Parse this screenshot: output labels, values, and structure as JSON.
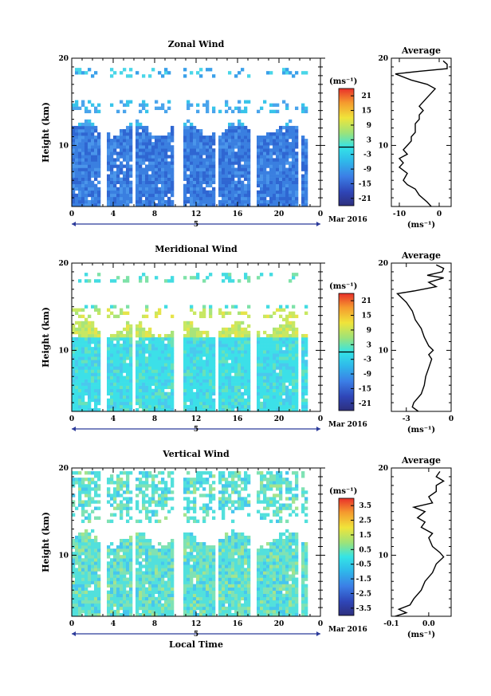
{
  "chart_data": [
    {
      "type": "heatmap",
      "title": "Zonal Wind",
      "ylabel": "Height (km)",
      "xlim": [
        0,
        24
      ],
      "ylim": [
        3,
        20
      ],
      "x_ticks": [
        "0",
        "4",
        "8",
        "12",
        "16",
        "20",
        "0"
      ],
      "y_ticks": [
        "10",
        "20"
      ],
      "date_marker": "5",
      "date_label": "Mar 2016",
      "colorbar": {
        "unit": "(ms⁻¹)",
        "ticks": [
          "21",
          "15",
          "9",
          "3",
          "-3",
          "-9",
          "-15",
          "-21"
        ],
        "range": [
          -24,
          24
        ]
      },
      "gaps": [
        3,
        6,
        10,
        10.5,
        14,
        17.5,
        22
      ],
      "profile": {
        "title": "Average",
        "xlabel": "(ms⁻¹)",
        "x_ticks": [
          "-10",
          "0"
        ],
        "y_ticks": [
          "10",
          "20"
        ],
        "xlim": [
          -12,
          3
        ],
        "points": [
          [
            -2,
            3
          ],
          [
            -3,
            3.5
          ],
          [
            -5,
            4.3
          ],
          [
            -6,
            5
          ],
          [
            -8,
            5.5
          ],
          [
            -9,
            6
          ],
          [
            -8,
            6.8
          ],
          [
            -10,
            7.5
          ],
          [
            -9,
            8
          ],
          [
            -10,
            8.5
          ],
          [
            -8,
            9
          ],
          [
            -9,
            9.5
          ],
          [
            -8,
            10
          ],
          [
            -7,
            10.5
          ],
          [
            -7,
            11
          ],
          [
            -6,
            11.5
          ],
          [
            -6,
            12
          ],
          [
            -6,
            12.5
          ],
          [
            -5,
            13
          ],
          [
            -5,
            13.5
          ],
          [
            -4,
            14
          ],
          [
            -5,
            14.5
          ],
          [
            -4,
            15
          ],
          [
            -3,
            15.5
          ],
          [
            -2,
            16
          ],
          [
            -1,
            16.5
          ],
          [
            -3,
            17
          ],
          [
            -7,
            17.5
          ],
          [
            -11,
            18.2
          ],
          [
            -5,
            18.5
          ],
          [
            2,
            18.8
          ],
          [
            2,
            19.3
          ],
          [
            1,
            19.7
          ]
        ]
      }
    },
    {
      "type": "heatmap",
      "title": "Meridional Wind",
      "ylabel": "Height (km)",
      "xlim": [
        0,
        24
      ],
      "ylim": [
        3,
        20
      ],
      "x_ticks": [
        "0",
        "4",
        "8",
        "12",
        "16",
        "20",
        "0"
      ],
      "y_ticks": [
        "10",
        "20"
      ],
      "date_marker": "5",
      "date_label": "Mar 2016",
      "colorbar": {
        "unit": "(ms⁻¹)",
        "ticks": [
          "21",
          "15",
          "9",
          "3",
          "-3",
          "-9",
          "-15",
          "-21"
        ],
        "range": [
          -24,
          24
        ]
      },
      "gaps": [
        3,
        6,
        10,
        10.5,
        14,
        17.5,
        22
      ],
      "profile": {
        "title": "Average",
        "xlabel": "(ms⁻¹)",
        "x_ticks": [
          "-3",
          "0"
        ],
        "y_ticks": [
          "10",
          "20"
        ],
        "xlim": [
          -4,
          0
        ],
        "points": [
          [
            -2.2,
            3
          ],
          [
            -2.6,
            3.5
          ],
          [
            -2.5,
            4
          ],
          [
            -2.0,
            5
          ],
          [
            -1.8,
            6
          ],
          [
            -1.7,
            7
          ],
          [
            -1.5,
            8
          ],
          [
            -1.3,
            9
          ],
          [
            -1.5,
            9.5
          ],
          [
            -1.2,
            10
          ],
          [
            -1.5,
            10.5
          ],
          [
            -1.8,
            11.5
          ],
          [
            -2.0,
            12.5
          ],
          [
            -2.4,
            13.5
          ],
          [
            -2.6,
            14.5
          ],
          [
            -3.0,
            15.5
          ],
          [
            -3.3,
            16
          ],
          [
            -3.6,
            16.5
          ],
          [
            -2.5,
            16.8
          ],
          [
            -1.0,
            17.3
          ],
          [
            -1.5,
            17.8
          ],
          [
            -0.5,
            18.3
          ],
          [
            -1.6,
            18.6
          ],
          [
            -0.6,
            19.0
          ],
          [
            -0.5,
            19.4
          ],
          [
            -1.0,
            19.8
          ]
        ]
      }
    },
    {
      "type": "heatmap",
      "title": "Vertical Wind",
      "ylabel": "Height (km)",
      "xlabel": "Local Time",
      "xlim": [
        0,
        24
      ],
      "ylim": [
        3,
        20
      ],
      "x_ticks": [
        "0",
        "4",
        "8",
        "12",
        "16",
        "20",
        "0"
      ],
      "y_ticks": [
        "10",
        "20"
      ],
      "date_marker": "5",
      "date_label": "Mar 2016",
      "colorbar": {
        "unit": "(ms⁻¹)",
        "ticks": [
          "3.5",
          "2.5",
          "1.5",
          "0.5",
          "-0.5",
          "-1.5",
          "-2.5",
          "-3.5"
        ],
        "range": [
          -4,
          4
        ]
      },
      "gaps": [
        3,
        6,
        10,
        10.5,
        14,
        17.5,
        22
      ],
      "profile": {
        "title": "Average",
        "xlabel": "(ms⁻¹)",
        "x_ticks": [
          "-0.1",
          "0.0"
        ],
        "y_ticks": [
          "10",
          "20"
        ],
        "xlim": [
          -0.1,
          0.06
        ],
        "points": [
          [
            -0.09,
            3
          ],
          [
            -0.06,
            3.4
          ],
          [
            -0.08,
            3.8
          ],
          [
            -0.05,
            4.3
          ],
          [
            -0.04,
            5
          ],
          [
            -0.02,
            6
          ],
          [
            -0.01,
            7
          ],
          [
            0.01,
            8
          ],
          [
            0.02,
            9
          ],
          [
            0.04,
            9.8
          ],
          [
            0.03,
            10.3
          ],
          [
            0.01,
            11
          ],
          [
            0.0,
            12
          ],
          [
            0.01,
            12.5
          ],
          [
            -0.02,
            13.2
          ],
          [
            -0.01,
            13.8
          ],
          [
            -0.03,
            14.3
          ],
          [
            -0.01,
            15
          ],
          [
            -0.04,
            15.5
          ],
          [
            0.01,
            16
          ],
          [
            0.0,
            16.7
          ],
          [
            0.02,
            17.3
          ],
          [
            0.02,
            18
          ],
          [
            0.04,
            18.5
          ],
          [
            0.02,
            19
          ],
          [
            0.03,
            19.6
          ]
        ]
      }
    }
  ]
}
